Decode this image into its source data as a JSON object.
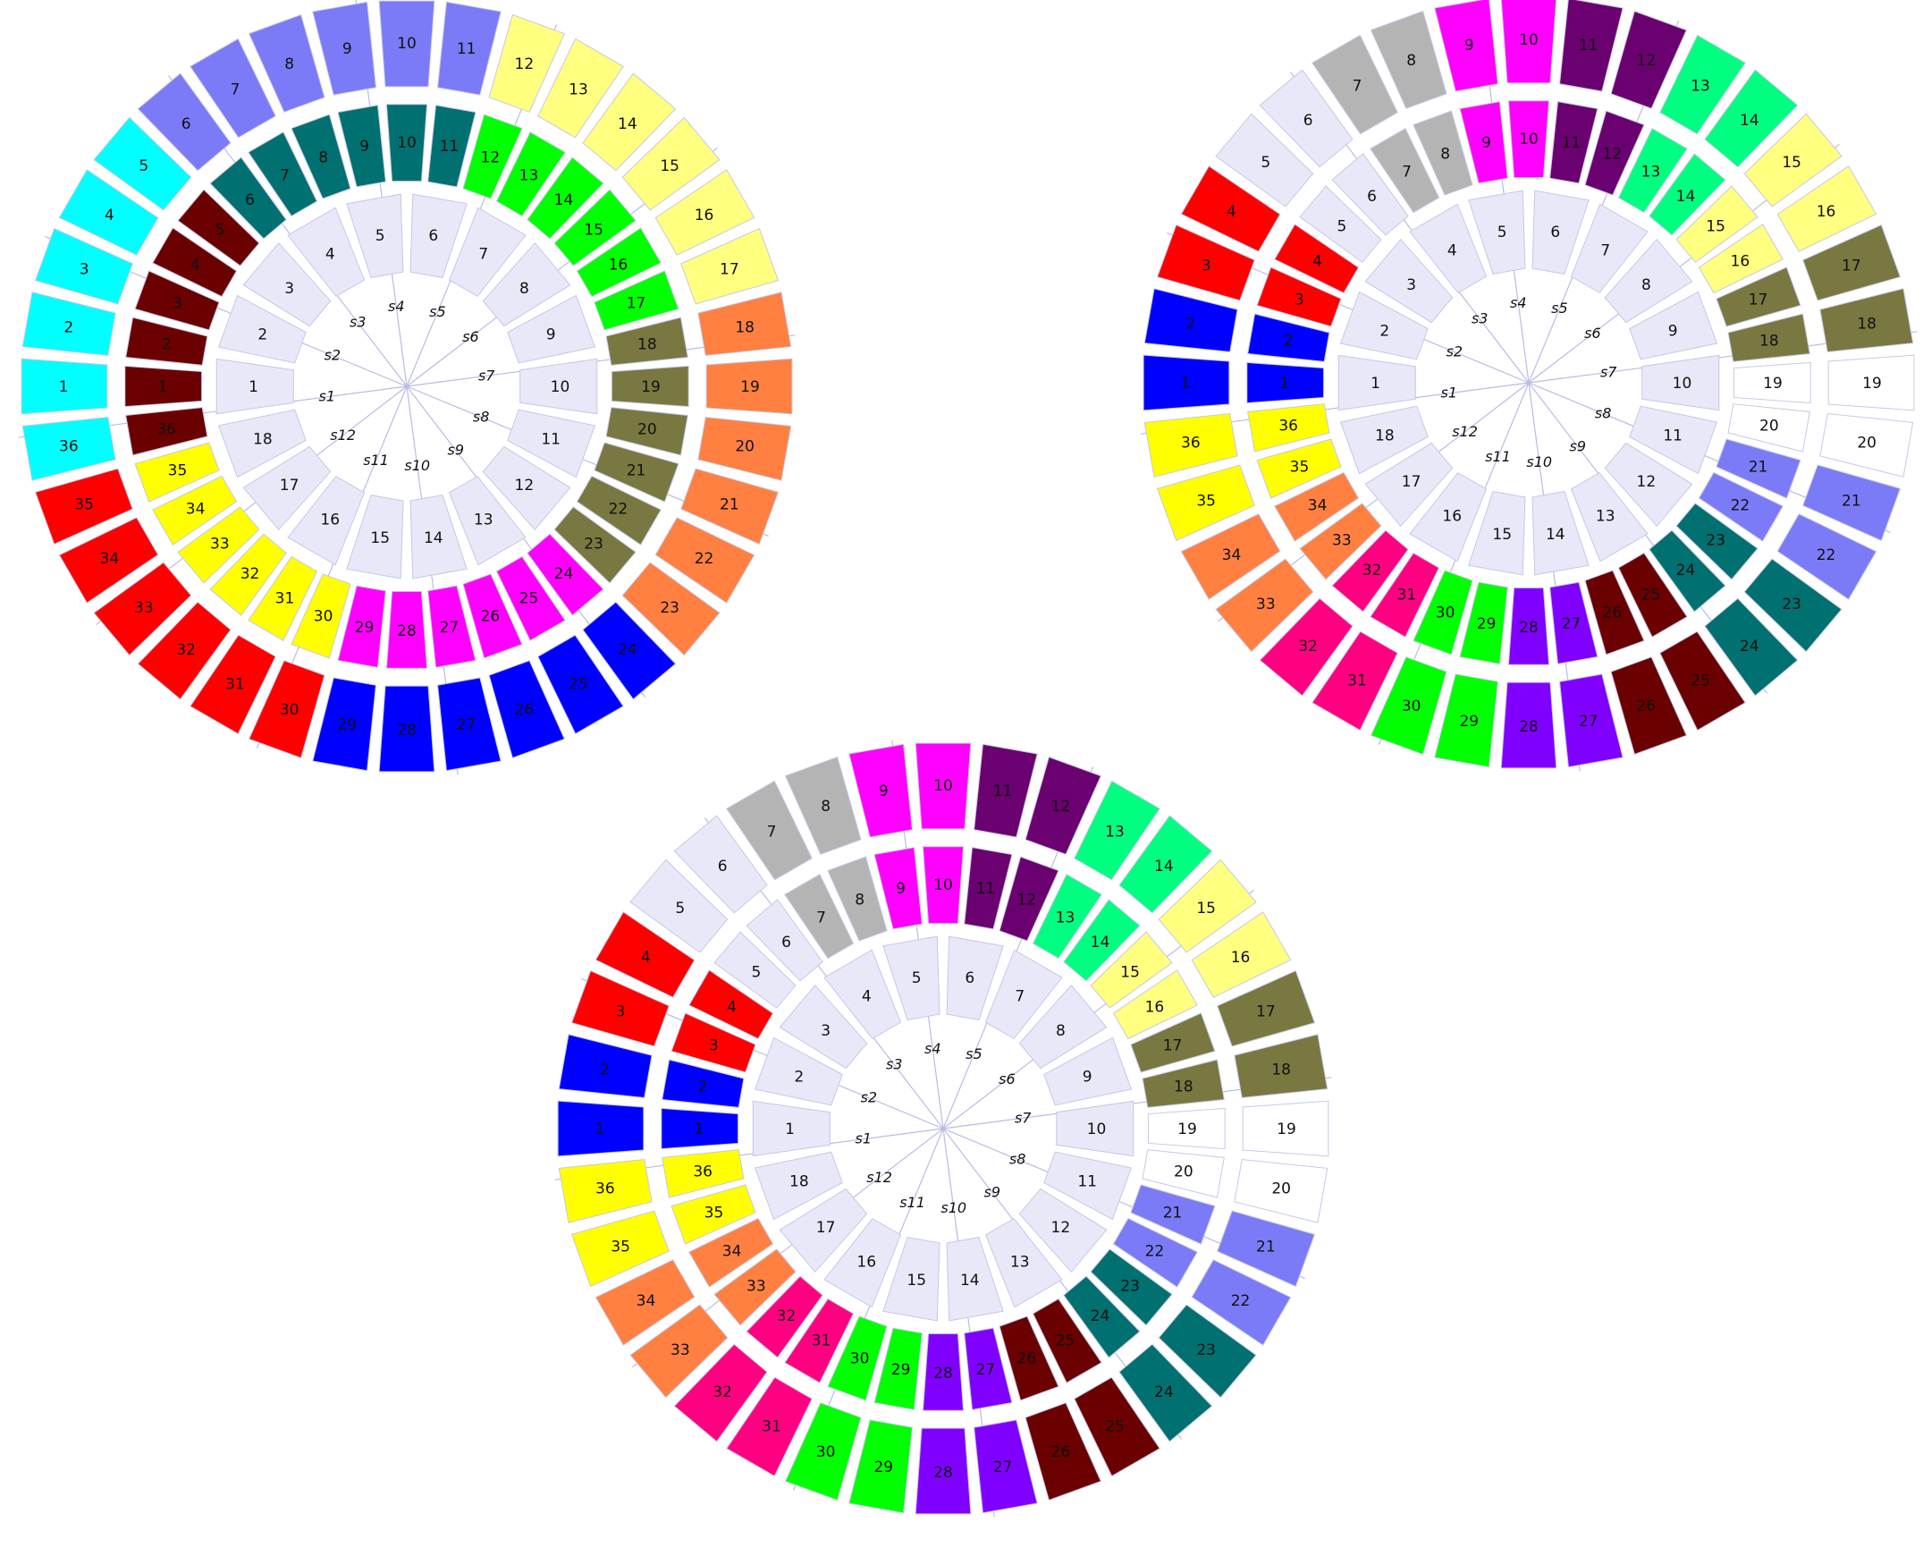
{
  "title": "",
  "palette": {
    "bg": "#ffffff",
    "lavender": "#e8e8f8",
    "white": "#ffffff",
    "cyan": "#00ffff",
    "periwinkle": "#7b7bf7",
    "yellow_light": "#ffff80",
    "orange": "#ff8040",
    "red": "#ff0000",
    "blue": "#0000ff",
    "maroon": "#6b0000",
    "teal": "#007070",
    "green": "#00ff00",
    "olive": "#787840",
    "magenta": "#ff00ff",
    "yellow": "#ffff00",
    "gray": "#b4b4b4",
    "purple": "#6b0070",
    "spring": "#00ff80",
    "pink": "#ff0080",
    "violet": "#8000ff"
  },
  "wheels": [
    {
      "name": "wheel-top-left",
      "sectors": [
        "s1",
        "s2",
        "s3",
        "s4",
        "s5",
        "s6",
        "s7",
        "s8",
        "s9",
        "s10",
        "s11",
        "s12"
      ],
      "inner": {
        "labels": [
          "1",
          "2",
          "3",
          "4",
          "5",
          "6",
          "7",
          "8",
          "9",
          "10",
          "11",
          "12",
          "13",
          "14",
          "15",
          "16",
          "17",
          "18"
        ],
        "colors": [
          "lavender",
          "lavender",
          "lavender",
          "lavender",
          "lavender",
          "lavender",
          "lavender",
          "lavender",
          "lavender",
          "lavender",
          "lavender",
          "lavender",
          "lavender",
          "lavender",
          "lavender",
          "lavender",
          "lavender",
          "lavender"
        ]
      },
      "middle": {
        "labels": [
          "1",
          "2",
          "3",
          "4",
          "5",
          "6",
          "7",
          "8",
          "9",
          "10",
          "11",
          "12",
          "13",
          "14",
          "15",
          "16",
          "17",
          "18",
          "19",
          "20",
          "21",
          "22",
          "23",
          "24",
          "25",
          "26",
          "27",
          "28",
          "29",
          "30",
          "31",
          "32",
          "33",
          "34",
          "35",
          "36"
        ],
        "colors": [
          "maroon",
          "maroon",
          "maroon",
          "maroon",
          "maroon",
          "teal",
          "teal",
          "teal",
          "teal",
          "teal",
          "teal",
          "green",
          "green",
          "green",
          "green",
          "green",
          "green",
          "olive",
          "olive",
          "olive",
          "olive",
          "olive",
          "olive",
          "magenta",
          "magenta",
          "magenta",
          "magenta",
          "magenta",
          "magenta",
          "yellow",
          "yellow",
          "yellow",
          "yellow",
          "yellow",
          "yellow",
          "maroon"
        ]
      },
      "outer": {
        "labels": [
          "1",
          "2",
          "3",
          "4",
          "5",
          "6",
          "7",
          "8",
          "9",
          "10",
          "11",
          "12",
          "13",
          "14",
          "15",
          "16",
          "17",
          "18",
          "19",
          "20",
          "21",
          "22",
          "23",
          "24",
          "25",
          "26",
          "27",
          "28",
          "29",
          "30",
          "31",
          "32",
          "33",
          "34",
          "35",
          "36"
        ],
        "colors": [
          "cyan",
          "cyan",
          "cyan",
          "cyan",
          "cyan",
          "periwinkle",
          "periwinkle",
          "periwinkle",
          "periwinkle",
          "periwinkle",
          "periwinkle",
          "yellow_light",
          "yellow_light",
          "yellow_light",
          "yellow_light",
          "yellow_light",
          "yellow_light",
          "orange",
          "orange",
          "orange",
          "orange",
          "orange",
          "orange",
          "blue",
          "blue",
          "blue",
          "blue",
          "blue",
          "blue",
          "red",
          "red",
          "red",
          "red",
          "red",
          "red",
          "cyan"
        ]
      }
    },
    {
      "name": "wheel-top-right",
      "sectors": [
        "s1",
        "s2",
        "s3",
        "s4",
        "s5",
        "s6",
        "s7",
        "s8",
        "s9",
        "s10",
        "s11",
        "s12"
      ],
      "inner": {
        "labels": [
          "1",
          "2",
          "3",
          "4",
          "5",
          "6",
          "7",
          "8",
          "9",
          "10",
          "11",
          "12",
          "13",
          "14",
          "15",
          "16",
          "17",
          "18"
        ],
        "colors": [
          "lavender",
          "lavender",
          "lavender",
          "lavender",
          "lavender",
          "lavender",
          "lavender",
          "lavender",
          "lavender",
          "lavender",
          "lavender",
          "lavender",
          "lavender",
          "lavender",
          "lavender",
          "lavender",
          "lavender",
          "lavender"
        ]
      },
      "middle": {
        "labels": [
          "1",
          "2",
          "3",
          "4",
          "5",
          "6",
          "7",
          "8",
          "9",
          "10",
          "11",
          "12",
          "13",
          "14",
          "15",
          "16",
          "17",
          "18",
          "19",
          "20",
          "21",
          "22",
          "23",
          "24",
          "25",
          "26",
          "27",
          "28",
          "29",
          "30",
          "31",
          "32",
          "33",
          "34",
          "35",
          "36"
        ],
        "colors": [
          "blue",
          "blue",
          "red",
          "red",
          "lavender",
          "lavender",
          "gray",
          "gray",
          "magenta",
          "magenta",
          "purple",
          "purple",
          "spring",
          "spring",
          "yellow_light",
          "yellow_light",
          "olive",
          "olive",
          "white",
          "white",
          "periwinkle",
          "periwinkle",
          "teal",
          "teal",
          "maroon",
          "maroon",
          "violet",
          "violet",
          "green",
          "green",
          "pink",
          "pink",
          "orange",
          "orange",
          "yellow",
          "yellow"
        ]
      },
      "outer": {
        "labels": [
          "1",
          "2",
          "3",
          "4",
          "5",
          "6",
          "7",
          "8",
          "9",
          "10",
          "11",
          "12",
          "13",
          "14",
          "15",
          "16",
          "17",
          "18",
          "19",
          "20",
          "21",
          "22",
          "23",
          "24",
          "25",
          "26",
          "27",
          "28",
          "29",
          "30",
          "31",
          "32",
          "33",
          "34",
          "35",
          "36"
        ],
        "colors": [
          "blue",
          "blue",
          "red",
          "red",
          "lavender",
          "lavender",
          "gray",
          "gray",
          "magenta",
          "magenta",
          "purple",
          "purple",
          "spring",
          "spring",
          "yellow_light",
          "yellow_light",
          "olive",
          "olive",
          "white",
          "white",
          "periwinkle",
          "periwinkle",
          "teal",
          "teal",
          "maroon",
          "maroon",
          "violet",
          "violet",
          "green",
          "green",
          "pink",
          "pink",
          "orange",
          "orange",
          "yellow",
          "yellow"
        ]
      }
    },
    {
      "name": "wheel-bottom",
      "sectors": [
        "s1",
        "s2",
        "s3",
        "s4",
        "s5",
        "s6",
        "s7",
        "s8",
        "s9",
        "s10",
        "s11",
        "s12"
      ],
      "inner": {
        "labels": [
          "1",
          "2",
          "3",
          "4",
          "5",
          "6",
          "7",
          "8",
          "9",
          "10",
          "11",
          "12",
          "13",
          "14",
          "15",
          "16",
          "17",
          "18"
        ],
        "colors": [
          "lavender",
          "lavender",
          "lavender",
          "lavender",
          "lavender",
          "lavender",
          "lavender",
          "lavender",
          "lavender",
          "lavender",
          "lavender",
          "lavender",
          "lavender",
          "lavender",
          "lavender",
          "lavender",
          "lavender",
          "lavender"
        ]
      },
      "middle": {
        "labels": [
          "1",
          "2",
          "3",
          "4",
          "5",
          "6",
          "7",
          "8",
          "9",
          "10",
          "11",
          "12",
          "13",
          "14",
          "15",
          "16",
          "17",
          "18",
          "19",
          "20",
          "21",
          "22",
          "23",
          "24",
          "25",
          "26",
          "27",
          "28",
          "29",
          "30",
          "31",
          "32",
          "33",
          "34",
          "35",
          "36"
        ],
        "colors": [
          "blue",
          "blue",
          "red",
          "red",
          "lavender",
          "lavender",
          "gray",
          "gray",
          "magenta",
          "magenta",
          "purple",
          "purple",
          "spring",
          "spring",
          "yellow_light",
          "yellow_light",
          "olive",
          "olive",
          "white",
          "white",
          "periwinkle",
          "periwinkle",
          "teal",
          "teal",
          "maroon",
          "maroon",
          "violet",
          "violet",
          "green",
          "green",
          "pink",
          "pink",
          "orange",
          "orange",
          "yellow",
          "yellow"
        ]
      },
      "outer": {
        "labels": [
          "1",
          "2",
          "3",
          "4",
          "5",
          "6",
          "7",
          "8",
          "9",
          "10",
          "11",
          "12",
          "13",
          "14",
          "15",
          "16",
          "17",
          "18",
          "19",
          "20",
          "21",
          "22",
          "23",
          "24",
          "25",
          "26",
          "27",
          "28",
          "29",
          "30",
          "31",
          "32",
          "33",
          "34",
          "35",
          "36"
        ],
        "colors": [
          "blue",
          "blue",
          "red",
          "red",
          "lavender",
          "lavender",
          "gray",
          "gray",
          "magenta",
          "magenta",
          "purple",
          "purple",
          "spring",
          "spring",
          "yellow_light",
          "yellow_light",
          "olive",
          "olive",
          "white",
          "white",
          "periwinkle",
          "periwinkle",
          "teal",
          "teal",
          "maroon",
          "maroon",
          "violet",
          "violet",
          "green",
          "green",
          "pink",
          "pink",
          "orange",
          "orange",
          "yellow",
          "yellow"
        ]
      }
    }
  ]
}
